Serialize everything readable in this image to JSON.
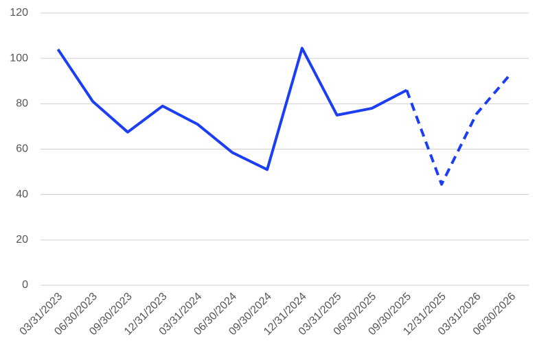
{
  "chart_data": {
    "type": "line",
    "categories": [
      "03/31/2023",
      "06/30/2023",
      "09/30/2023",
      "12/31/2023",
      "03/31/2024",
      "06/30/2024",
      "09/30/2024",
      "12/31/2024",
      "03/31/2025",
      "06/30/2025",
      "09/30/2025",
      "12/31/2025",
      "03/31/2026",
      "06/30/2026"
    ],
    "series": [
      {
        "color": "#1c3ef2",
        "dashed": false,
        "values": [
          104,
          81,
          67.5,
          79,
          71,
          58.5,
          51,
          104.5,
          75,
          78,
          86,
          null,
          null,
          null
        ]
      },
      {
        "color": "#1c3ef2",
        "dashed": true,
        "values": [
          null,
          null,
          null,
          null,
          null,
          null,
          null,
          null,
          null,
          null,
          86,
          44.5,
          75.5,
          93.5
        ]
      }
    ],
    "ylim": [
      0,
      120
    ],
    "yticks": [
      0,
      20,
      40,
      60,
      80,
      100,
      120
    ],
    "grid": true
  }
}
